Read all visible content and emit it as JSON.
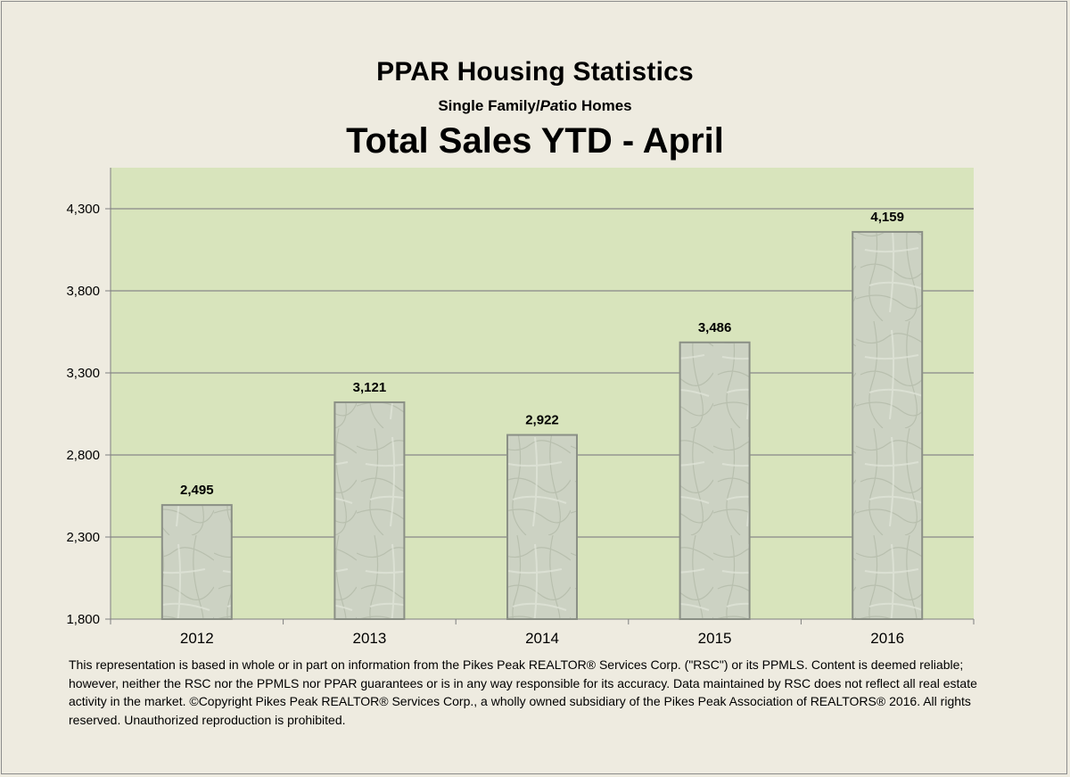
{
  "header": {
    "title": "PPAR Housing Statistics",
    "subtitle_a": "Single Family/",
    "subtitle_b": "Pa",
    "subtitle_c": "tio Homes",
    "main_title": "Total Sales YTD - April"
  },
  "chart_data": {
    "type": "bar",
    "title": "Total Sales YTD - April",
    "xlabel": "",
    "ylabel": "",
    "categories": [
      "2012",
      "2013",
      "2014",
      "2015",
      "2016"
    ],
    "values": [
      2495,
      3121,
      2922,
      3486,
      4159
    ],
    "data_labels": [
      "2,495",
      "3,121",
      "2,922",
      "3,486",
      "4,159"
    ],
    "ylim": [
      1800,
      4550
    ],
    "yticks": [
      1800,
      2300,
      2800,
      3300,
      3800,
      4300
    ],
    "ytick_labels": [
      "1,800",
      "2,300",
      "2,800",
      "3,300",
      "3,800",
      "4,300"
    ],
    "grid": true,
    "legend": "none",
    "colors": {
      "plot_background": "#d8e4bc",
      "bar_fill": "#c9cfbf",
      "bar_border": "#8a8f85",
      "gridline": "#888888"
    }
  },
  "footnote": "This representation is based in whole or in part on information from the Pikes Peak REALTOR® Services Corp.  (\"RSC\") or its PPMLS.  Content is deemed reliable; however, neither the RSC nor the PPMLS nor PPAR guarantees or is in any way responsible for its accuracy.  Data maintained by RSC does not reflect all real estate activity in the market.  ©Copyright Pikes Peak REALTOR® Services Corp., a wholly owned subsidiary of the Pikes Peak Association of REALTORS®  2016.  All rights reserved.  Unauthorized reproduction is prohibited."
}
